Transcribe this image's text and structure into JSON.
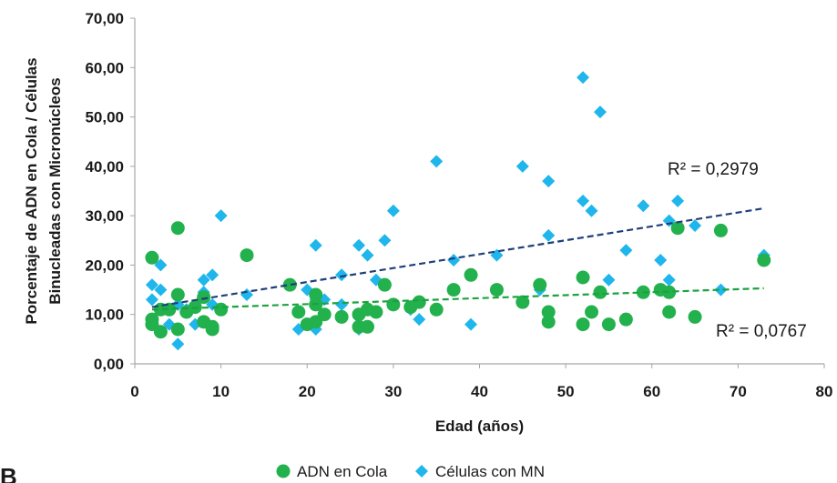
{
  "chart_data": {
    "type": "scatter",
    "xlabel": "Edad (años)",
    "ylabel_lines": [
      "Porcentaje de ADN en Cola / Células",
      "Binucleadas con Micronúcleos"
    ],
    "xlim": [
      0,
      80
    ],
    "ylim": [
      0,
      70
    ],
    "x_ticks": [
      "0",
      "10",
      "20",
      "30",
      "40",
      "50",
      "60",
      "70",
      "80"
    ],
    "y_ticks": [
      "0,00",
      "10,00",
      "20,00",
      "30,00",
      "40,00",
      "50,00",
      "60,00",
      "70,00"
    ],
    "grid": false,
    "legend_position": "bottom",
    "corner_label": "B",
    "series": [
      {
        "name": "ADN en Cola",
        "marker": "circle",
        "color": "#22b14c",
        "trend_color": "#1aa33c",
        "r2_label": "R² = 0,0767",
        "trendline": {
          "x": [
            2,
            73
          ],
          "y": [
            11.0,
            15.3
          ]
        },
        "points": [
          [
            2,
            21.5
          ],
          [
            2,
            9
          ],
          [
            2,
            8
          ],
          [
            3,
            6.5
          ],
          [
            3,
            11
          ],
          [
            4,
            11
          ],
          [
            5,
            27.5
          ],
          [
            5,
            14
          ],
          [
            5,
            7
          ],
          [
            6,
            10.5
          ],
          [
            7,
            11.5
          ],
          [
            8,
            8.5
          ],
          [
            8,
            13.5
          ],
          [
            9,
            7.5
          ],
          [
            9,
            7
          ],
          [
            10,
            11
          ],
          [
            13,
            22
          ],
          [
            18,
            16
          ],
          [
            19,
            10.5
          ],
          [
            20,
            8
          ],
          [
            21,
            14
          ],
          [
            21,
            12
          ],
          [
            21,
            8.5
          ],
          [
            22,
            10
          ],
          [
            24,
            9.5
          ],
          [
            26,
            10
          ],
          [
            26,
            7.5
          ],
          [
            27,
            11
          ],
          [
            27,
            7.5
          ],
          [
            28,
            10.5
          ],
          [
            29,
            16
          ],
          [
            30,
            12
          ],
          [
            32,
            11.5
          ],
          [
            33,
            12.5
          ],
          [
            35,
            11
          ],
          [
            37,
            15
          ],
          [
            39,
            18
          ],
          [
            42,
            15
          ],
          [
            45,
            12.5
          ],
          [
            47,
            16
          ],
          [
            48,
            10.5
          ],
          [
            48,
            8.5
          ],
          [
            52,
            17.5
          ],
          [
            52,
            8
          ],
          [
            53,
            10.5
          ],
          [
            54,
            14.5
          ],
          [
            55,
            8
          ],
          [
            57,
            9
          ],
          [
            59,
            14.5
          ],
          [
            61,
            15
          ],
          [
            62,
            14.5
          ],
          [
            62,
            10.5
          ],
          [
            63,
            27.5
          ],
          [
            65,
            9.5
          ],
          [
            68,
            27
          ],
          [
            73,
            21
          ]
        ]
      },
      {
        "name": "Células con MN",
        "marker": "diamond",
        "color": "#1fb6ec",
        "trend_color": "#1f3f7a",
        "r2_label": "R² = 0,2979",
        "trendline": {
          "x": [
            2,
            73
          ],
          "y": [
            11.5,
            31.5
          ]
        },
        "points": [
          [
            2,
            16
          ],
          [
            2,
            13
          ],
          [
            3,
            20
          ],
          [
            3,
            15
          ],
          [
            4,
            8
          ],
          [
            5,
            4
          ],
          [
            5,
            12
          ],
          [
            6,
            11
          ],
          [
            7,
            8
          ],
          [
            8,
            17
          ],
          [
            8,
            14.5
          ],
          [
            9,
            18
          ],
          [
            9,
            12
          ],
          [
            10,
            30
          ],
          [
            13,
            14
          ],
          [
            18,
            16
          ],
          [
            19,
            7
          ],
          [
            20,
            15
          ],
          [
            21,
            24
          ],
          [
            21,
            13
          ],
          [
            21,
            12
          ],
          [
            21,
            7
          ],
          [
            22,
            13
          ],
          [
            24,
            18
          ],
          [
            24,
            12
          ],
          [
            26,
            24
          ],
          [
            26,
            7
          ],
          [
            27,
            22
          ],
          [
            27,
            11
          ],
          [
            28,
            17
          ],
          [
            29,
            25
          ],
          [
            30,
            31
          ],
          [
            32,
            11
          ],
          [
            33,
            9
          ],
          [
            35,
            41
          ],
          [
            37,
            21
          ],
          [
            39,
            8
          ],
          [
            42,
            22
          ],
          [
            45,
            40
          ],
          [
            47,
            15
          ],
          [
            48,
            37
          ],
          [
            48,
            26
          ],
          [
            52,
            58
          ],
          [
            52,
            33
          ],
          [
            53,
            31
          ],
          [
            54,
            51
          ],
          [
            55,
            17
          ],
          [
            57,
            23
          ],
          [
            59,
            32
          ],
          [
            61,
            21
          ],
          [
            62,
            29
          ],
          [
            62,
            17
          ],
          [
            63,
            33
          ],
          [
            65,
            28
          ],
          [
            68,
            15
          ],
          [
            73,
            22
          ]
        ]
      }
    ]
  }
}
